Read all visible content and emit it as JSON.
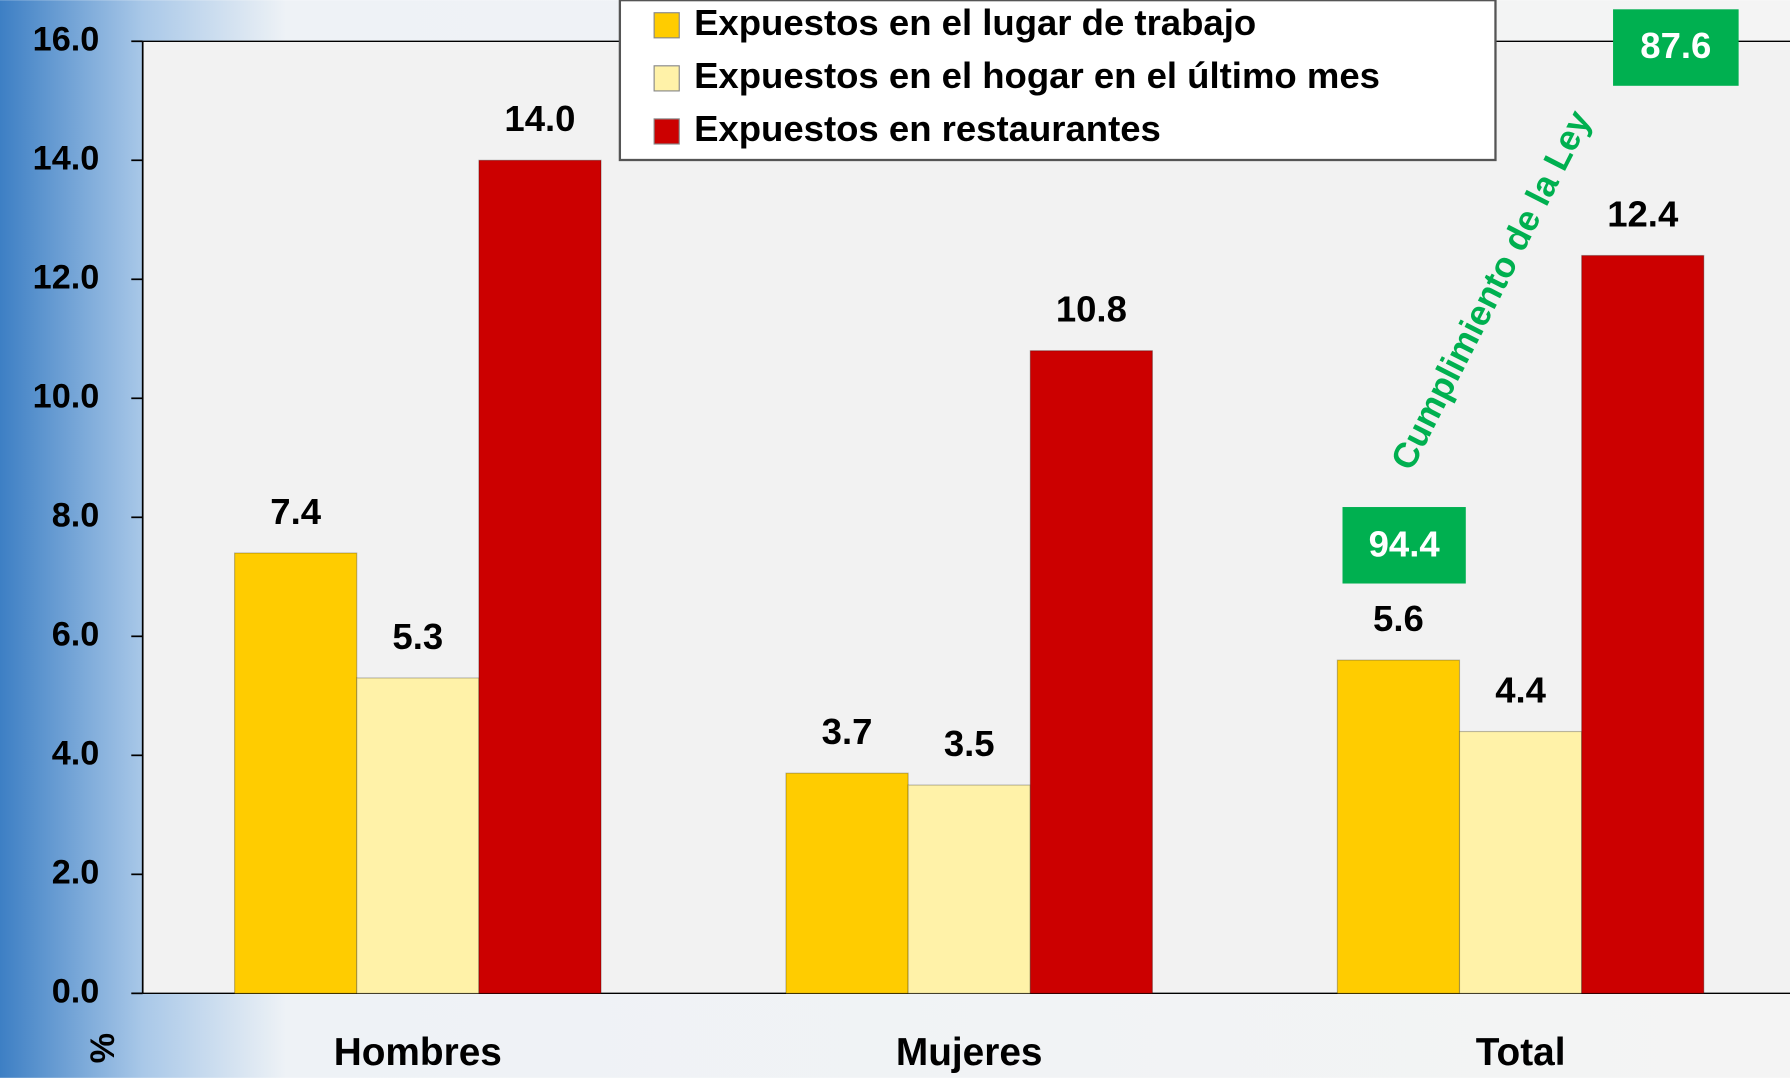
{
  "chart_data": {
    "type": "bar",
    "categories": [
      "Hombres",
      "Mujeres",
      "Total"
    ],
    "series": [
      {
        "name": "Expuestos en el lugar de trabajo",
        "color": "#ffcc00",
        "values": [
          7.4,
          3.7,
          5.6
        ],
        "value_labels": [
          "7.4",
          "3.7",
          "5.6"
        ]
      },
      {
        "name": "Expuestos en el hogar en el último mes",
        "color": "#fff2a8",
        "values": [
          5.3,
          3.5,
          4.4
        ],
        "value_labels": [
          "5.3",
          "3.5",
          "4.4"
        ]
      },
      {
        "name": "Expuestos en restaurantes",
        "color": "#cc0000",
        "values": [
          14,
          10.8,
          12.4
        ],
        "value_labels": [
          "14.0",
          "10.8",
          "12.4"
        ]
      }
    ],
    "ylabel": "%",
    "ylim": [
      0,
      16
    ],
    "yticks": [
      {
        "value": 0,
        "label": "0.0"
      },
      {
        "value": 2,
        "label": "2.0"
      },
      {
        "value": 4,
        "label": "4.0"
      },
      {
        "value": 6,
        "label": "6.0"
      },
      {
        "value": 8,
        "label": "8.0"
      },
      {
        "value": 10,
        "label": "10.0"
      },
      {
        "value": 12,
        "label": "12.0"
      },
      {
        "value": 14,
        "label": "14.0"
      },
      {
        "value": 16,
        "label": "16.0"
      }
    ],
    "legend": "top",
    "annotations": [
      {
        "text": "94.4"
      },
      {
        "text": "87.6"
      },
      {
        "text": "Cumplimiento de la Ley"
      }
    ]
  }
}
